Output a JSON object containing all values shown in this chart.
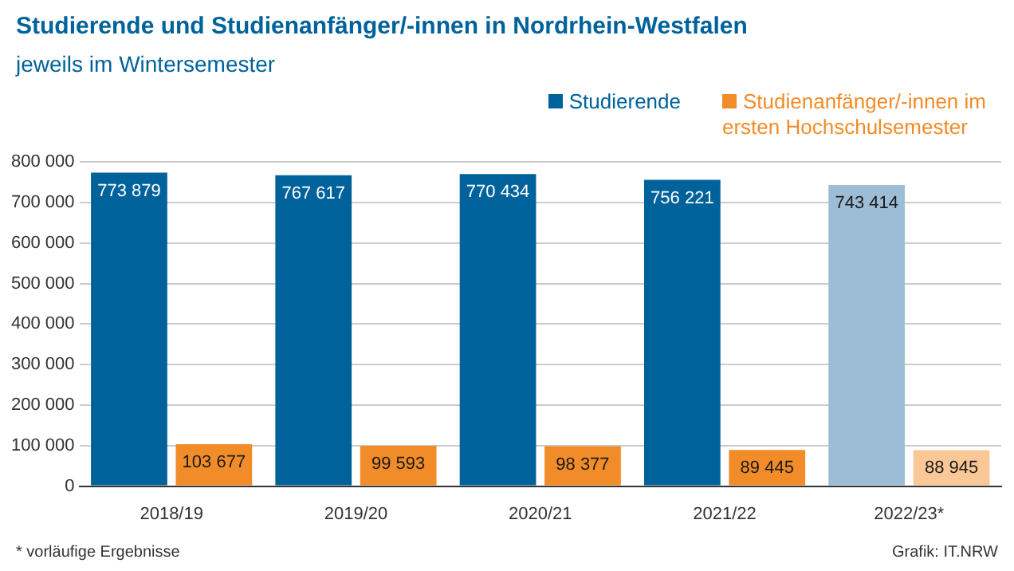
{
  "chart_data": {
    "type": "bar",
    "title": "Studierende und Studienanfänger/-innen in Nordrhein-Westfalen",
    "subtitle": "jeweils im Wintersemester",
    "categories": [
      "2018/19",
      "2019/20",
      "2020/21",
      "2021/22",
      "2022/23*"
    ],
    "series": [
      {
        "name": "Studierende",
        "color": "#00629b",
        "colors": [
          "#00629b",
          "#00629b",
          "#00629b",
          "#00629b",
          "#9dbdd6"
        ],
        "values": [
          773879,
          767617,
          770434,
          756221,
          743414
        ],
        "value_labels": [
          "773 879",
          "767 617",
          "770 434",
          "756 221",
          "743 414"
        ]
      },
      {
        "name": "Studienanfänger/-innen im ersten Hochschulsemester",
        "color": "#f28c28",
        "colors": [
          "#f28c28",
          "#f28c28",
          "#f28c28",
          "#f28c28",
          "#f9c896"
        ],
        "values": [
          103677,
          99593,
          98377,
          89445,
          88945
        ],
        "value_labels": [
          "103 677",
          "99 593",
          "98 377",
          "89 445",
          "88 945"
        ]
      }
    ],
    "ylim": [
      0,
      800000
    ],
    "yticks": [
      {
        "value": 0,
        "label": "0"
      },
      {
        "value": 100000,
        "label": "100 000"
      },
      {
        "value": 200000,
        "label": "200 000"
      },
      {
        "value": 300000,
        "label": "300 000"
      },
      {
        "value": 400000,
        "label": "400 000"
      },
      {
        "value": 500000,
        "label": "500 000"
      },
      {
        "value": 600000,
        "label": "600 000"
      },
      {
        "value": 700000,
        "label": "700 000"
      },
      {
        "value": 800000,
        "label": "800 000"
      }
    ],
    "grid": "y",
    "legend": "top right",
    "annotations": [
      "* vorläufige Ergebnisse",
      "Grafik: IT.NRW"
    ]
  }
}
